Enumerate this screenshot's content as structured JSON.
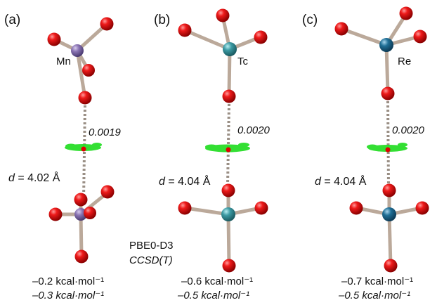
{
  "panels": [
    {
      "label": "(a)",
      "metal": "Mn",
      "metal_color": "#8a74b3",
      "density_value": "0.0019",
      "distance_prefix": "d",
      "distance_text": " = 4.02 Å",
      "energy_pbe0": "–0.2 kcal·mol⁻¹",
      "energy_ccsd": "–0.3 kcal·mol⁻¹"
    },
    {
      "label": "(b)",
      "metal": "Tc",
      "metal_color": "#3c9aa3",
      "density_value": "0.0020",
      "distance_prefix": "d",
      "distance_text": " = 4.04 Å",
      "energy_pbe0": "–0.6 kcal·mol⁻¹",
      "energy_ccsd": "–0.5 kcal·mol⁻¹"
    },
    {
      "label": "(c)",
      "metal": "Re",
      "metal_color": "#1f6f96",
      "density_value": "0.0020",
      "distance_prefix": "d",
      "distance_text": " = 4.04 Å",
      "energy_pbe0": "–0.7 kcal·mol⁻¹",
      "energy_ccsd": "–0.5 kcal·mol⁻¹"
    }
  ],
  "methods": {
    "pbe0": "PBE0-D3",
    "ccsd": "CCSD(T)"
  },
  "colors": {
    "oxygen": "#e00000",
    "bond": "#bba99a",
    "contact": "#9a8f85",
    "isosurface": "#22dd22"
  }
}
